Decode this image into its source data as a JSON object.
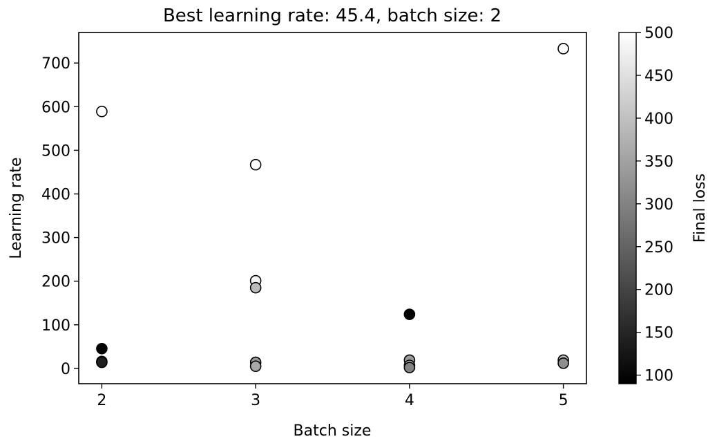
{
  "chart_data": {
    "type": "scatter",
    "title": "Best learning rate: 45.4, batch size: 2",
    "xlabel": "Batch size",
    "ylabel": "Learning rate",
    "xlim": [
      1.85,
      5.15
    ],
    "ylim": [
      -35,
      770
    ],
    "xticks": [
      2,
      3,
      4,
      5
    ],
    "yticks": [
      0,
      100,
      200,
      300,
      400,
      500,
      600,
      700
    ],
    "grid": false,
    "colorbar": {
      "label": "Final loss",
      "range": [
        90,
        500
      ],
      "ticks": [
        100,
        150,
        200,
        250,
        300,
        350,
        400,
        450,
        500
      ],
      "colormap": "gray"
    },
    "points": [
      {
        "x": 2,
        "y": 589,
        "loss": 500
      },
      {
        "x": 2,
        "y": 45.4,
        "loss": 90
      },
      {
        "x": 2,
        "y": 16,
        "loss": 150
      },
      {
        "x": 2,
        "y": 14,
        "loss": 140
      },
      {
        "x": 3,
        "y": 467,
        "loss": 500
      },
      {
        "x": 3,
        "y": 201,
        "loss": 480
      },
      {
        "x": 3,
        "y": 185,
        "loss": 390
      },
      {
        "x": 3,
        "y": 14,
        "loss": 330
      },
      {
        "x": 3,
        "y": 5,
        "loss": 360
      },
      {
        "x": 4,
        "y": 124,
        "loss": 95
      },
      {
        "x": 4,
        "y": 19,
        "loss": 340
      },
      {
        "x": 4,
        "y": 7,
        "loss": 380
      },
      {
        "x": 4,
        "y": 2,
        "loss": 300
      },
      {
        "x": 5,
        "y": 733,
        "loss": 500
      },
      {
        "x": 5,
        "y": 19,
        "loss": 390
      },
      {
        "x": 5,
        "y": 12,
        "loss": 320
      }
    ]
  }
}
